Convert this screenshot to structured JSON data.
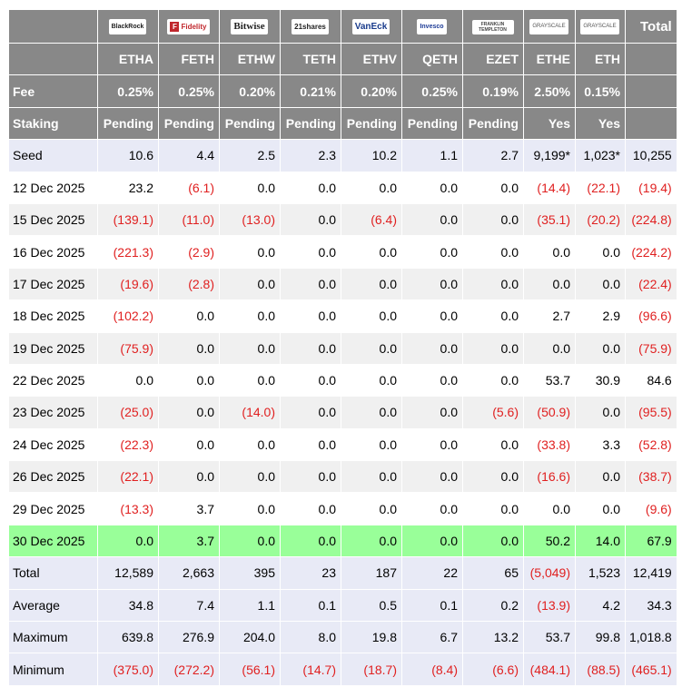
{
  "chart_data": {
    "type": "table",
    "issuers": [
      "BlackRock",
      "Fidelity",
      "Bitwise",
      "21shares",
      "VanEck",
      "Invesco",
      "FRANKLIN TEMPLETON",
      "GRAYSCALE",
      "GRAYSCALE"
    ],
    "total_header": "Total",
    "tickers": [
      "ETHA",
      "FETH",
      "ETHW",
      "TETH",
      "ETHV",
      "QETH",
      "EZET",
      "ETHE",
      "ETH"
    ],
    "fee_label": "Fee",
    "fees": [
      "0.25%",
      "0.25%",
      "0.20%",
      "0.21%",
      "0.20%",
      "0.25%",
      "0.19%",
      "2.50%",
      "0.15%"
    ],
    "staking_label": "Staking",
    "staking": [
      "Pending",
      "Pending",
      "Pending",
      "Pending",
      "Pending",
      "Pending",
      "Pending",
      "Yes",
      "Yes"
    ],
    "rows": [
      {
        "label": "Seed",
        "style": "seed",
        "cells": [
          "10.6",
          "4.4",
          "2.5",
          "2.3",
          "10.2",
          "1.1",
          "2.7",
          "9,199*",
          "1,023*",
          "10,255"
        ]
      },
      {
        "label": "12 Dec 2025",
        "style": "odd",
        "cells": [
          "23.2",
          "(6.1)",
          "0.0",
          "0.0",
          "0.0",
          "0.0",
          "0.0",
          "(14.4)",
          "(22.1)",
          "(19.4)"
        ]
      },
      {
        "label": "15 Dec 2025",
        "style": "even",
        "cells": [
          "(139.1)",
          "(11.0)",
          "(13.0)",
          "0.0",
          "(6.4)",
          "0.0",
          "0.0",
          "(35.1)",
          "(20.2)",
          "(224.8)"
        ]
      },
      {
        "label": "16 Dec 2025",
        "style": "odd",
        "cells": [
          "(221.3)",
          "(2.9)",
          "0.0",
          "0.0",
          "0.0",
          "0.0",
          "0.0",
          "0.0",
          "0.0",
          "(224.2)"
        ]
      },
      {
        "label": "17 Dec 2025",
        "style": "even",
        "cells": [
          "(19.6)",
          "(2.8)",
          "0.0",
          "0.0",
          "0.0",
          "0.0",
          "0.0",
          "0.0",
          "0.0",
          "(22.4)"
        ]
      },
      {
        "label": "18 Dec 2025",
        "style": "odd",
        "cells": [
          "(102.2)",
          "0.0",
          "0.0",
          "0.0",
          "0.0",
          "0.0",
          "0.0",
          "2.7",
          "2.9",
          "(96.6)"
        ]
      },
      {
        "label": "19 Dec 2025",
        "style": "even",
        "cells": [
          "(75.9)",
          "0.0",
          "0.0",
          "0.0",
          "0.0",
          "0.0",
          "0.0",
          "0.0",
          "0.0",
          "(75.9)"
        ]
      },
      {
        "label": "22 Dec 2025",
        "style": "odd",
        "cells": [
          "0.0",
          "0.0",
          "0.0",
          "0.0",
          "0.0",
          "0.0",
          "0.0",
          "53.7",
          "30.9",
          "84.6"
        ]
      },
      {
        "label": "23 Dec 2025",
        "style": "even",
        "cells": [
          "(25.0)",
          "0.0",
          "(14.0)",
          "0.0",
          "0.0",
          "0.0",
          "(5.6)",
          "(50.9)",
          "0.0",
          "(95.5)"
        ]
      },
      {
        "label": "24 Dec 2025",
        "style": "odd",
        "cells": [
          "(22.3)",
          "0.0",
          "0.0",
          "0.0",
          "0.0",
          "0.0",
          "0.0",
          "(33.8)",
          "3.3",
          "(52.8)"
        ]
      },
      {
        "label": "26 Dec 2025",
        "style": "even",
        "cells": [
          "(22.1)",
          "0.0",
          "0.0",
          "0.0",
          "0.0",
          "0.0",
          "0.0",
          "(16.6)",
          "0.0",
          "(38.7)"
        ]
      },
      {
        "label": "29 Dec 2025",
        "style": "odd",
        "cells": [
          "(13.3)",
          "3.7",
          "0.0",
          "0.0",
          "0.0",
          "0.0",
          "0.0",
          "0.0",
          "0.0",
          "(9.6)"
        ]
      },
      {
        "label": "30 Dec 2025",
        "style": "hl",
        "cells": [
          "0.0",
          "3.7",
          "0.0",
          "0.0",
          "0.0",
          "0.0",
          "0.0",
          "50.2",
          "14.0",
          "67.9"
        ]
      },
      {
        "label": "Total",
        "style": "sum",
        "cells": [
          "12,589",
          "2,663",
          "395",
          "23",
          "187",
          "22",
          "65",
          "(5,049)",
          "1,523",
          "12,419"
        ]
      },
      {
        "label": "Average",
        "style": "sum",
        "cells": [
          "34.8",
          "7.4",
          "1.1",
          "0.1",
          "0.5",
          "0.1",
          "0.2",
          "(13.9)",
          "4.2",
          "34.3"
        ]
      },
      {
        "label": "Maximum",
        "style": "sum",
        "cells": [
          "639.8",
          "276.9",
          "204.0",
          "8.0",
          "19.8",
          "6.7",
          "13.2",
          "53.7",
          "99.8",
          "1,018.8"
        ]
      },
      {
        "label": "Minimum",
        "style": "sum",
        "cells": [
          "(375.0)",
          "(272.2)",
          "(56.1)",
          "(14.7)",
          "(18.7)",
          "(8.4)",
          "(6.6)",
          "(484.1)",
          "(88.5)",
          "(465.1)"
        ]
      }
    ],
    "colors": {
      "header_bg": "#888888",
      "seed_bg": "#e8eaf6",
      "row_alt_bg": "#f0f0f0",
      "highlight_bg": "#99ff99",
      "summary_bg": "#e8eaf6",
      "negative_text": "#e02020"
    }
  }
}
